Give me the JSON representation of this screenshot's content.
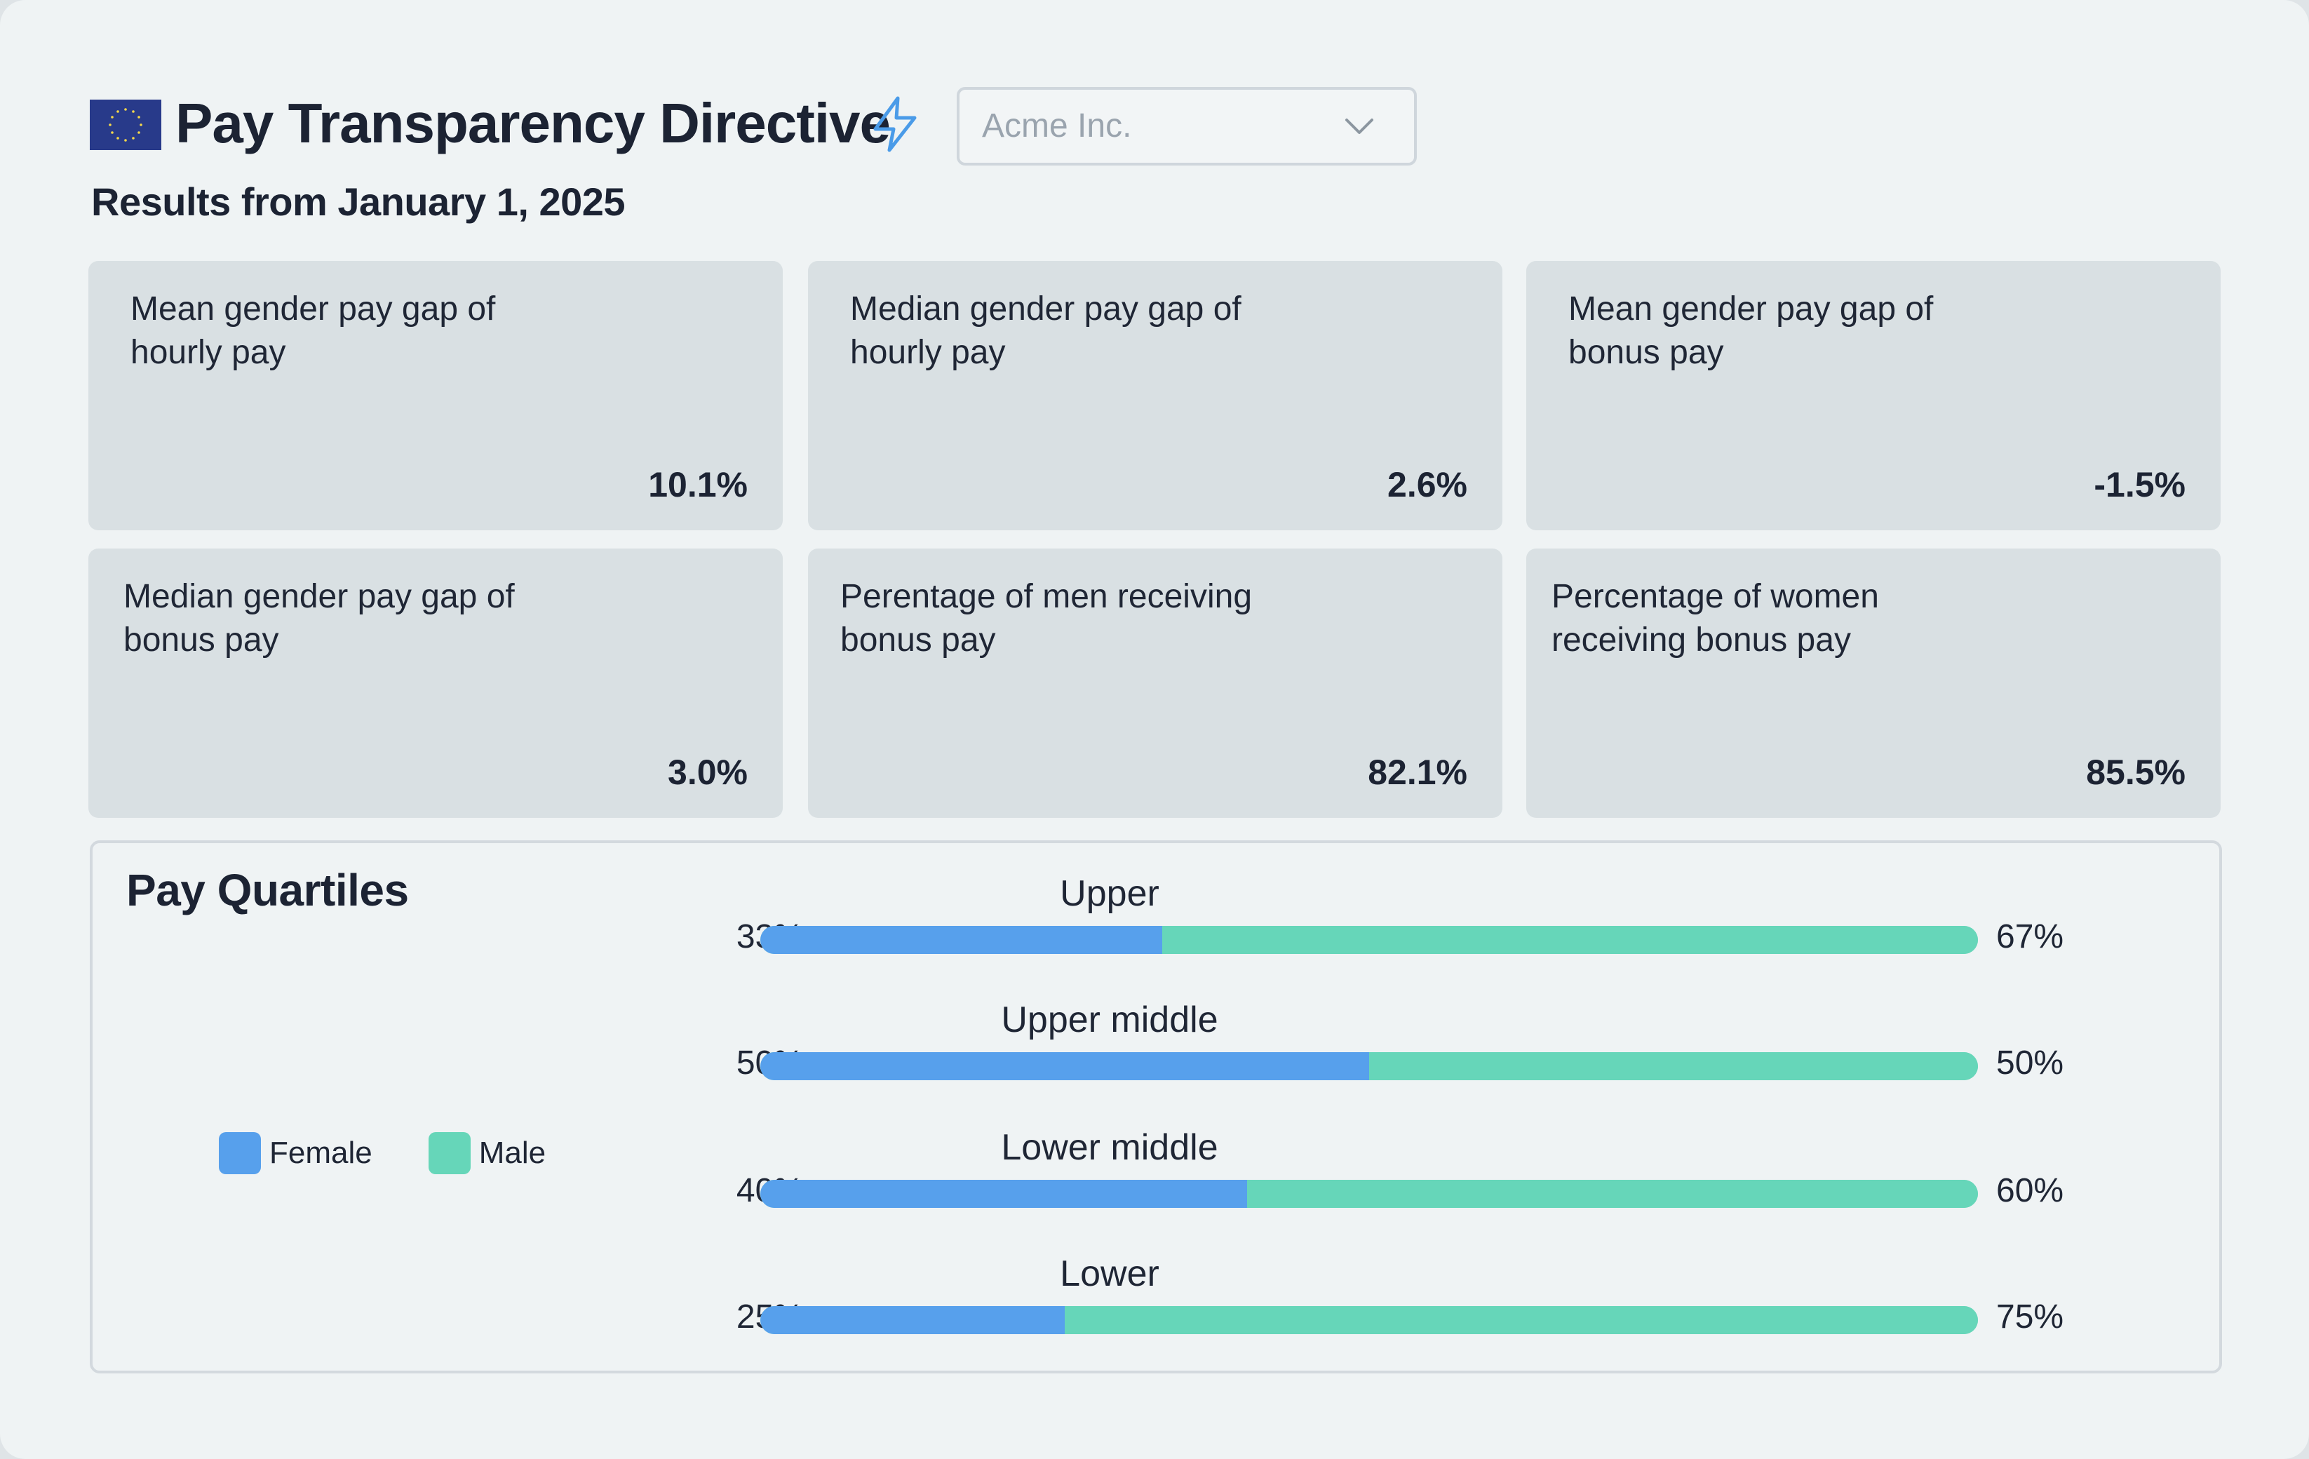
{
  "header": {
    "title": "Pay Transparency Directive",
    "subtitle": "Results from January 1, 2025",
    "company_select": {
      "value": "Acme Inc."
    },
    "flag_icon": "eu-flag-icon",
    "bolt_icon": "lightning-bolt-icon"
  },
  "metrics": [
    {
      "label": "Mean gender pay gap of hourly pay",
      "value": "10.1%"
    },
    {
      "label": "Median gender pay gap of hourly pay",
      "value": "2.6%"
    },
    {
      "label": "Mean gender pay gap of bonus pay",
      "value": "-1.5%"
    },
    {
      "label": "Median gender pay gap of bonus pay",
      "value": "3.0%"
    },
    {
      "label": "Perentage of men receiving bonus pay",
      "value": "82.1%"
    },
    {
      "label": "Percentage of women receiving bonus pay",
      "value": "85.5%"
    }
  ],
  "quartiles": {
    "title": "Pay Quartiles",
    "legend": [
      {
        "label": "Female",
        "color": "#57a0ec"
      },
      {
        "label": "Male",
        "color": "#66d6b9"
      }
    ],
    "rows": [
      {
        "name": "Upper",
        "female_label": "33%",
        "male_label": "67%",
        "female": 33,
        "male": 67
      },
      {
        "name": "Upper middle",
        "female_label": "50%",
        "male_label": "50%",
        "female": 50,
        "male": 50
      },
      {
        "name": "Lower middle",
        "female_label": "40%",
        "male_label": "60%",
        "female": 40,
        "male": 60
      },
      {
        "name": "Lower",
        "female_label": "25%",
        "male_label": "75%",
        "female": 25,
        "male": 75
      }
    ]
  },
  "colors": {
    "female": "#57a0ec",
    "male": "#66d6b9",
    "accent": "#4a9be8",
    "flag_blue": "#283a8a",
    "flag_stars": "#f5d84a"
  }
}
